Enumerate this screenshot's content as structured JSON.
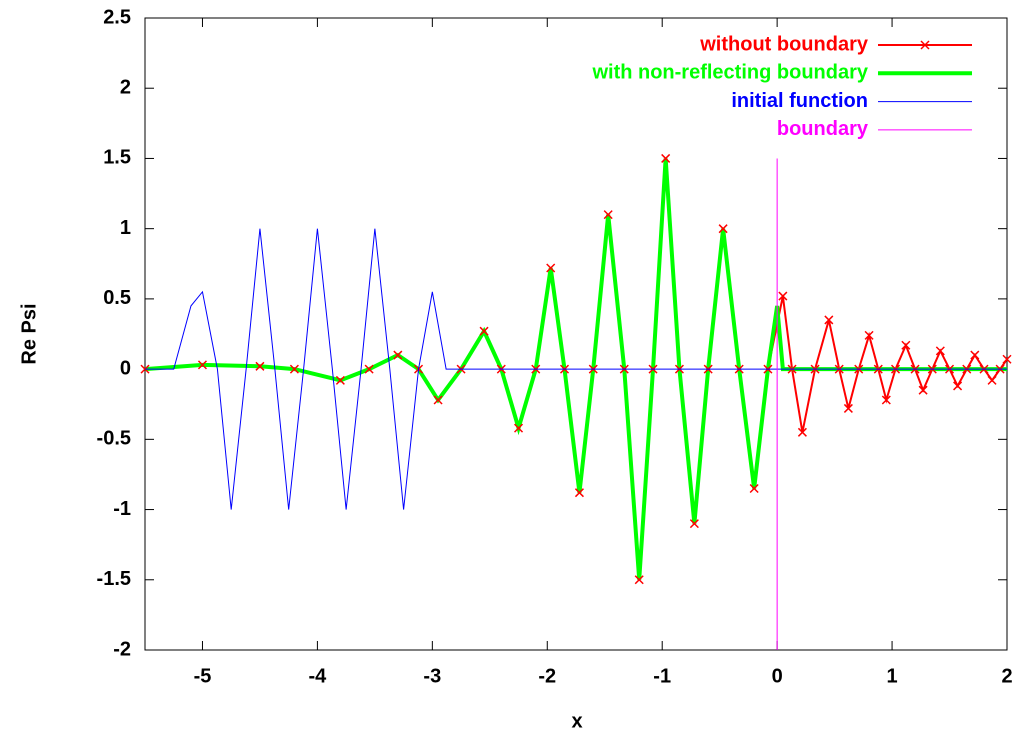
{
  "chart_data": {
    "type": "line",
    "xlabel": "x",
    "ylabel": "Re Psi",
    "xlim": [
      -5.5,
      2
    ],
    "ylim": [
      -2,
      2.5
    ],
    "xticks": [
      -5,
      -4,
      -3,
      -2,
      -1,
      0,
      1,
      2
    ],
    "yticks": [
      -2,
      -1.5,
      -1,
      -0.5,
      0,
      0.5,
      1,
      1.5,
      2,
      2.5
    ],
    "grid": false,
    "legend": "top-right",
    "series": [
      {
        "name": "without boundary",
        "color": "#ff0000",
        "marker": "x",
        "x": [
          -5.5,
          -5.0,
          -4.5,
          -4.2,
          -3.8,
          -3.55,
          -3.3,
          -3.12,
          -2.95,
          -2.75,
          -2.55,
          -2.4,
          -2.25,
          -2.1,
          -1.97,
          -1.85,
          -1.72,
          -1.6,
          -1.47,
          -1.33,
          -1.2,
          -1.08,
          -0.97,
          -0.85,
          -0.72,
          -0.6,
          -0.47,
          -0.33,
          -0.2,
          -0.08,
          0.05,
          0.13,
          0.22,
          0.33,
          0.45,
          0.54,
          0.62,
          0.71,
          0.8,
          0.88,
          0.95,
          1.03,
          1.12,
          1.2,
          1.27,
          1.35,
          1.42,
          1.5,
          1.57,
          1.65,
          1.72,
          1.8,
          1.87,
          1.94,
          2.0
        ],
        "values": [
          0.0,
          0.03,
          0.02,
          0.0,
          -0.08,
          0.0,
          0.1,
          0.0,
          -0.22,
          0.0,
          0.27,
          0.0,
          -0.42,
          0.0,
          0.72,
          0.0,
          -0.88,
          0.0,
          1.1,
          0.0,
          -1.5,
          0.0,
          1.5,
          0.0,
          -1.1,
          0.0,
          1.0,
          0.0,
          -0.85,
          0.0,
          0.52,
          0.0,
          -0.45,
          0.0,
          0.35,
          0.0,
          -0.28,
          0.0,
          0.24,
          0.0,
          -0.22,
          0.0,
          0.17,
          0.0,
          -0.15,
          0.0,
          0.13,
          0.0,
          -0.12,
          0.0,
          0.1,
          0.0,
          -0.08,
          0.0,
          0.07
        ]
      },
      {
        "name": "with non-reflecting boundary",
        "color": "#00ff00",
        "x": [
          -5.5,
          -5.0,
          -4.5,
          -4.2,
          -3.8,
          -3.55,
          -3.3,
          -3.12,
          -2.95,
          -2.75,
          -2.55,
          -2.4,
          -2.25,
          -2.1,
          -1.97,
          -1.85,
          -1.72,
          -1.6,
          -1.47,
          -1.33,
          -1.2,
          -1.08,
          -0.97,
          -0.85,
          -0.72,
          -0.6,
          -0.47,
          -0.33,
          -0.2,
          -0.08,
          0.0,
          0.05,
          2.0
        ],
        "values": [
          0.0,
          0.03,
          0.02,
          0.0,
          -0.08,
          0.0,
          0.1,
          0.0,
          -0.22,
          0.0,
          0.27,
          0.0,
          -0.42,
          0.0,
          0.72,
          0.0,
          -0.88,
          0.0,
          1.1,
          0.0,
          -1.5,
          0.0,
          1.5,
          0.0,
          -1.1,
          0.0,
          1.0,
          0.0,
          -0.85,
          0.0,
          0.45,
          0.0,
          0.0
        ]
      },
      {
        "name": "initial function",
        "color": "#0000ff",
        "x": [
          -5.5,
          -5.25,
          -5.1,
          -5.0,
          -4.87,
          -4.75,
          -4.62,
          -4.5,
          -4.37,
          -4.25,
          -4.12,
          -4.0,
          -3.87,
          -3.75,
          -3.62,
          -3.5,
          -3.37,
          -3.25,
          -3.12,
          -3.0,
          -2.88,
          2.0
        ],
        "values": [
          0.0,
          0.0,
          0.45,
          0.55,
          0.0,
          -1.0,
          0.0,
          1.0,
          0.0,
          -1.0,
          0.0,
          1.0,
          0.0,
          -1.0,
          0.0,
          1.0,
          0.0,
          -1.0,
          0.0,
          0.55,
          0.0,
          0.0
        ]
      },
      {
        "name": "boundary",
        "color": "#ff00ff",
        "x": [
          0,
          0
        ],
        "values": [
          -2,
          1.5
        ]
      }
    ]
  }
}
